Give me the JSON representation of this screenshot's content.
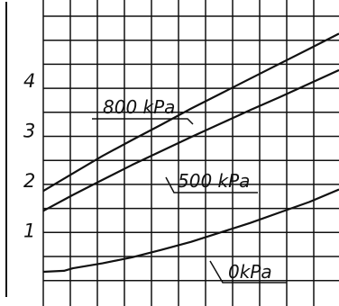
{
  "chart_data": {
    "type": "line",
    "title": "",
    "xlabel": "",
    "ylabel": "",
    "ylim": [
      0,
      5.3
    ],
    "xlim": [
      0,
      10
    ],
    "y_ticks": [
      {
        "value": 1,
        "label": "1"
      },
      {
        "value": 2,
        "label": "2"
      },
      {
        "value": 3,
        "label": "3"
      },
      {
        "value": 4,
        "label": "4"
      }
    ],
    "grid": true,
    "legend": "inline labels",
    "series": [
      {
        "name": "800 kPa",
        "x": [
          0,
          1,
          2,
          3,
          4,
          5,
          6,
          7,
          8,
          9,
          10
        ],
        "values": [
          1.8,
          2.15,
          2.5,
          2.82,
          3.13,
          3.45,
          3.75,
          4.05,
          4.35,
          4.65,
          4.95
        ]
      },
      {
        "name": "500 kPa",
        "x": [
          0,
          1,
          2,
          3,
          4,
          5,
          6,
          7,
          8,
          9,
          10
        ],
        "values": [
          1.4,
          1.72,
          2.02,
          2.32,
          2.6,
          2.88,
          3.15,
          3.42,
          3.68,
          3.95,
          4.22
        ]
      },
      {
        "name": "0kPa",
        "x": [
          0,
          0.7,
          1,
          2,
          3,
          4,
          5,
          6,
          7,
          8,
          9,
          10
        ],
        "values": [
          0.18,
          0.2,
          0.25,
          0.35,
          0.47,
          0.62,
          0.78,
          0.97,
          1.16,
          1.37,
          1.58,
          1.83
        ]
      }
    ],
    "labels": [
      "800 kPa",
      "500 kPa",
      "0kPa"
    ]
  },
  "colors": {
    "line": "#111111",
    "grid": "#111111",
    "background": "#ffffff"
  }
}
